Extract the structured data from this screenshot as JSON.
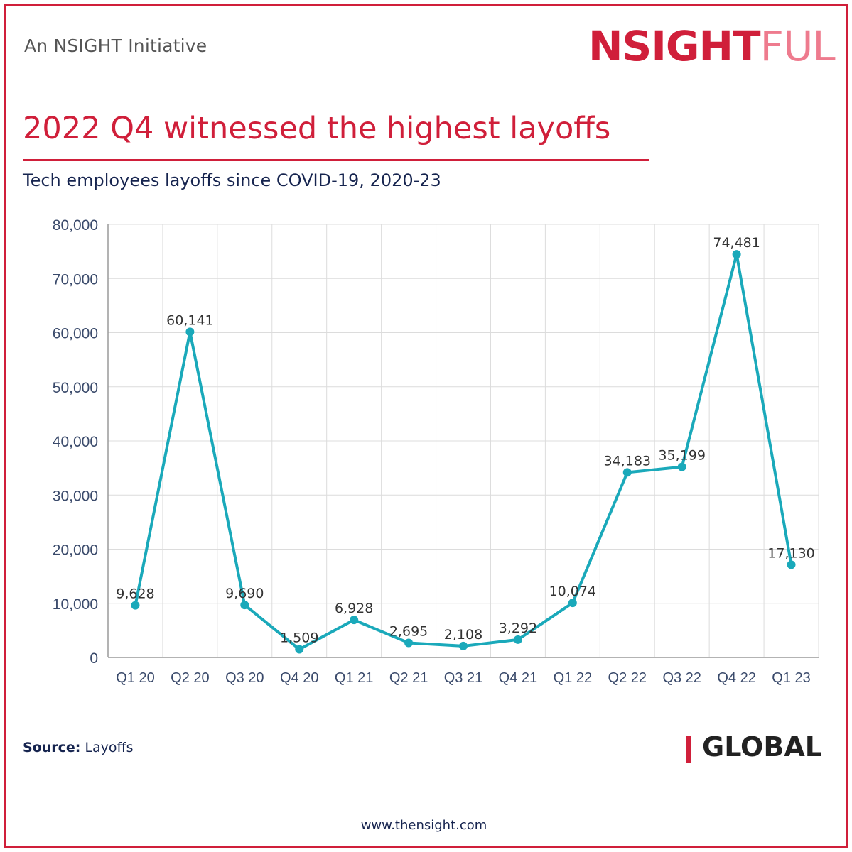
{
  "header": {
    "initiative": "An NSIGHT Initiative",
    "logo_primary": "NSIGHT",
    "logo_secondary": "FUL"
  },
  "title": "2022 Q4 witnessed the highest layoffs",
  "subtitle": "Tech employees layoffs since COVID-19, 2020-23",
  "footer": {
    "source_label": "Source:",
    "source_value": "Layoffs",
    "region": "GLOBAL",
    "website": "www.thensight.com"
  },
  "colors": {
    "accent": "#d01f3a",
    "line": "#1aa9ba",
    "navy": "#16244f"
  },
  "chart_data": {
    "type": "line",
    "title": "Tech employees layoffs since COVID-19, 2020-23",
    "xlabel": "",
    "ylabel": "",
    "ylim": [
      0,
      80000
    ],
    "yticks": [
      0,
      10000,
      20000,
      30000,
      40000,
      50000,
      60000,
      70000,
      80000
    ],
    "ytick_labels": [
      "0",
      "10,000",
      "20,000",
      "30,000",
      "40,000",
      "50,000",
      "60,000",
      "70,000",
      "80,000"
    ],
    "grid": true,
    "categories": [
      "Q1 20",
      "Q2 20",
      "Q3 20",
      "Q4 20",
      "Q1 21",
      "Q2 21",
      "Q3 21",
      "Q4 21",
      "Q1 22",
      "Q2 22",
      "Q3 22",
      "Q4 22",
      "Q1 23"
    ],
    "series": [
      {
        "name": "Layoffs",
        "values": [
          9628,
          60141,
          9690,
          1509,
          6928,
          2695,
          2108,
          3292,
          10074,
          34183,
          35199,
          74481,
          17130
        ],
        "labels": [
          "9,628",
          "60,141",
          "9,690",
          "1,509",
          "6,928",
          "2,695",
          "2,108",
          "3,292",
          "10,074",
          "34,183",
          "35,199",
          "74,481",
          "17,130"
        ]
      }
    ]
  }
}
